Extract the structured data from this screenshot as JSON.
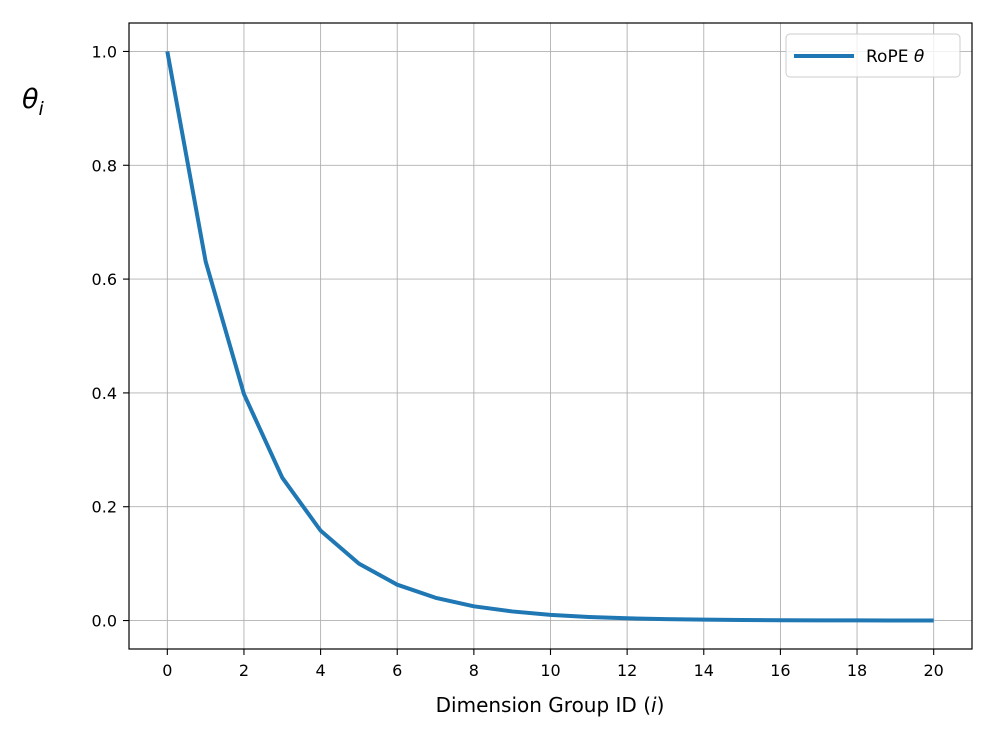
{
  "chart_data": {
    "type": "line",
    "title": "",
    "xlabel": "Dimension Group ID (i)",
    "xlabel_parts": {
      "main": "Dimension Group ID (",
      "var": "i",
      "close": ")"
    },
    "ylabel": "θi",
    "ylabel_parts": {
      "main": "θ",
      "sub": "i"
    },
    "xlim": [
      -1,
      21
    ],
    "ylim": [
      -0.05,
      1.05
    ],
    "xticks": [
      0,
      2,
      4,
      6,
      8,
      10,
      12,
      14,
      16,
      18,
      20
    ],
    "xtick_labels": [
      "0",
      "2",
      "4",
      "6",
      "8",
      "10",
      "12",
      "14",
      "16",
      "18",
      "20"
    ],
    "yticks": [
      0.0,
      0.2,
      0.4,
      0.6,
      0.8,
      1.0
    ],
    "ytick_labels": [
      "0.0",
      "0.2",
      "0.4",
      "0.6",
      "0.8",
      "1.0"
    ],
    "grid": true,
    "legend_position": "top-right",
    "legend": {
      "main": "RoPE ",
      "symbol": "θ"
    },
    "x": [
      0,
      1,
      2,
      3,
      4,
      5,
      6,
      7,
      8,
      9,
      10,
      11,
      12,
      13,
      14,
      15,
      16,
      17,
      18,
      19,
      20
    ],
    "series": [
      {
        "name": "RoPE θ",
        "color": "#1f77b4",
        "values": [
          1.0,
          0.631,
          0.398,
          0.251,
          0.158,
          0.1,
          0.063,
          0.04,
          0.025,
          0.016,
          0.01,
          0.0063,
          0.004,
          0.0025,
          0.0016,
          0.001,
          0.00063,
          0.0004,
          0.00025,
          0.00016,
          0.0001
        ]
      }
    ],
    "colors": {
      "grid": "#b0b0b0",
      "axes": "#000000",
      "legend_border": "#cccccc"
    }
  }
}
